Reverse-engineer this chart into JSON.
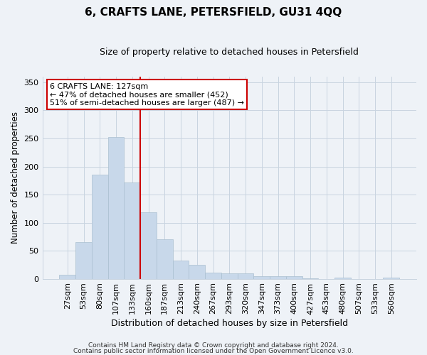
{
  "title": "6, CRAFTS LANE, PETERSFIELD, GU31 4QQ",
  "subtitle": "Size of property relative to detached houses in Petersfield",
  "xlabel": "Distribution of detached houses by size in Petersfield",
  "ylabel": "Number of detached properties",
  "bar_color": "#c8d8ea",
  "bar_edgecolor": "#aabfd0",
  "bin_labels": [
    "27sqm",
    "53sqm",
    "80sqm",
    "107sqm",
    "133sqm",
    "160sqm",
    "187sqm",
    "213sqm",
    "240sqm",
    "267sqm",
    "293sqm",
    "320sqm",
    "347sqm",
    "373sqm",
    "400sqm",
    "427sqm",
    "453sqm",
    "480sqm",
    "507sqm",
    "533sqm",
    "560sqm"
  ],
  "bar_heights": [
    7,
    65,
    185,
    253,
    171,
    119,
    70,
    32,
    25,
    11,
    9,
    9,
    5,
    4,
    5,
    1,
    0,
    2,
    0,
    0,
    2
  ],
  "vline_bin_index": 4,
  "vline_color": "#cc0000",
  "annotation_title": "6 CRAFTS LANE: 127sqm",
  "annotation_line1": "← 47% of detached houses are smaller (452)",
  "annotation_line2": "51% of semi-detached houses are larger (487) →",
  "annotation_box_color": "#ffffff",
  "annotation_box_edgecolor": "#cc0000",
  "ylim": [
    0,
    360
  ],
  "footer_line1": "Contains HM Land Registry data © Crown copyright and database right 2024.",
  "footer_line2": "Contains public sector information licensed under the Open Government Licence v3.0.",
  "background_color": "#eef2f7",
  "grid_color": "#c8d4e0"
}
